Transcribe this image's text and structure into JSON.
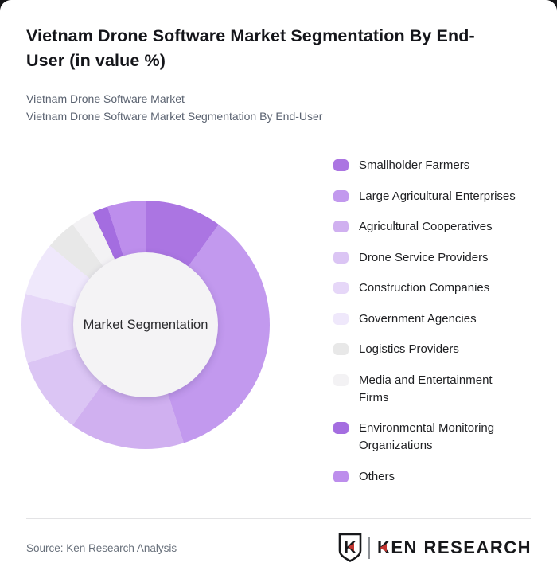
{
  "header": {
    "title": "Vietnam Drone Software Market Segmentation By End-User (in value %)",
    "subtitle_line1": "Vietnam Drone Software Market",
    "subtitle_line2": "Vietnam Drone Software Market Segmentation By End-User"
  },
  "chart_data": {
    "type": "pie",
    "variant": "donut",
    "unit": "%",
    "center_label": "Market Segmentation",
    "start_angle_deg": 0,
    "direction": "clockwise",
    "legend_position": "right",
    "value_labels_shown": false,
    "segments": [
      {
        "label": "Smallholder Farmers",
        "value": 10,
        "color": "#ab75e2"
      },
      {
        "label": "Large Agricultural Enterprises",
        "value": 35,
        "color": "#c299ee"
      },
      {
        "label": "Agricultural Cooperatives",
        "value": 15,
        "color": "#d0b0f0"
      },
      {
        "label": "Drone Service Providers",
        "value": 10,
        "color": "#dbc5f4"
      },
      {
        "label": "Construction Companies",
        "value": 9,
        "color": "#e6d7f8"
      },
      {
        "label": "Government Agencies",
        "value": 7,
        "color": "#efe8fb"
      },
      {
        "label": "Logistics Providers",
        "value": 4,
        "color": "#e8e8e8"
      },
      {
        "label": "Media and Entertainment\nFirms",
        "value": 3,
        "color": "#f3f2f4"
      },
      {
        "label": "Environmental Monitoring\nOrganizations",
        "value": 2,
        "color": "#a46de0"
      },
      {
        "label": "Others",
        "value": 5,
        "color": "#bd8eec"
      }
    ]
  },
  "footer": {
    "source": "Source: Ken Research Analysis",
    "logo": {
      "monogram": "K",
      "brand_first_letter": "K",
      "brand_rest": "EN RESEARCH",
      "accent_color": "#c23530"
    }
  }
}
